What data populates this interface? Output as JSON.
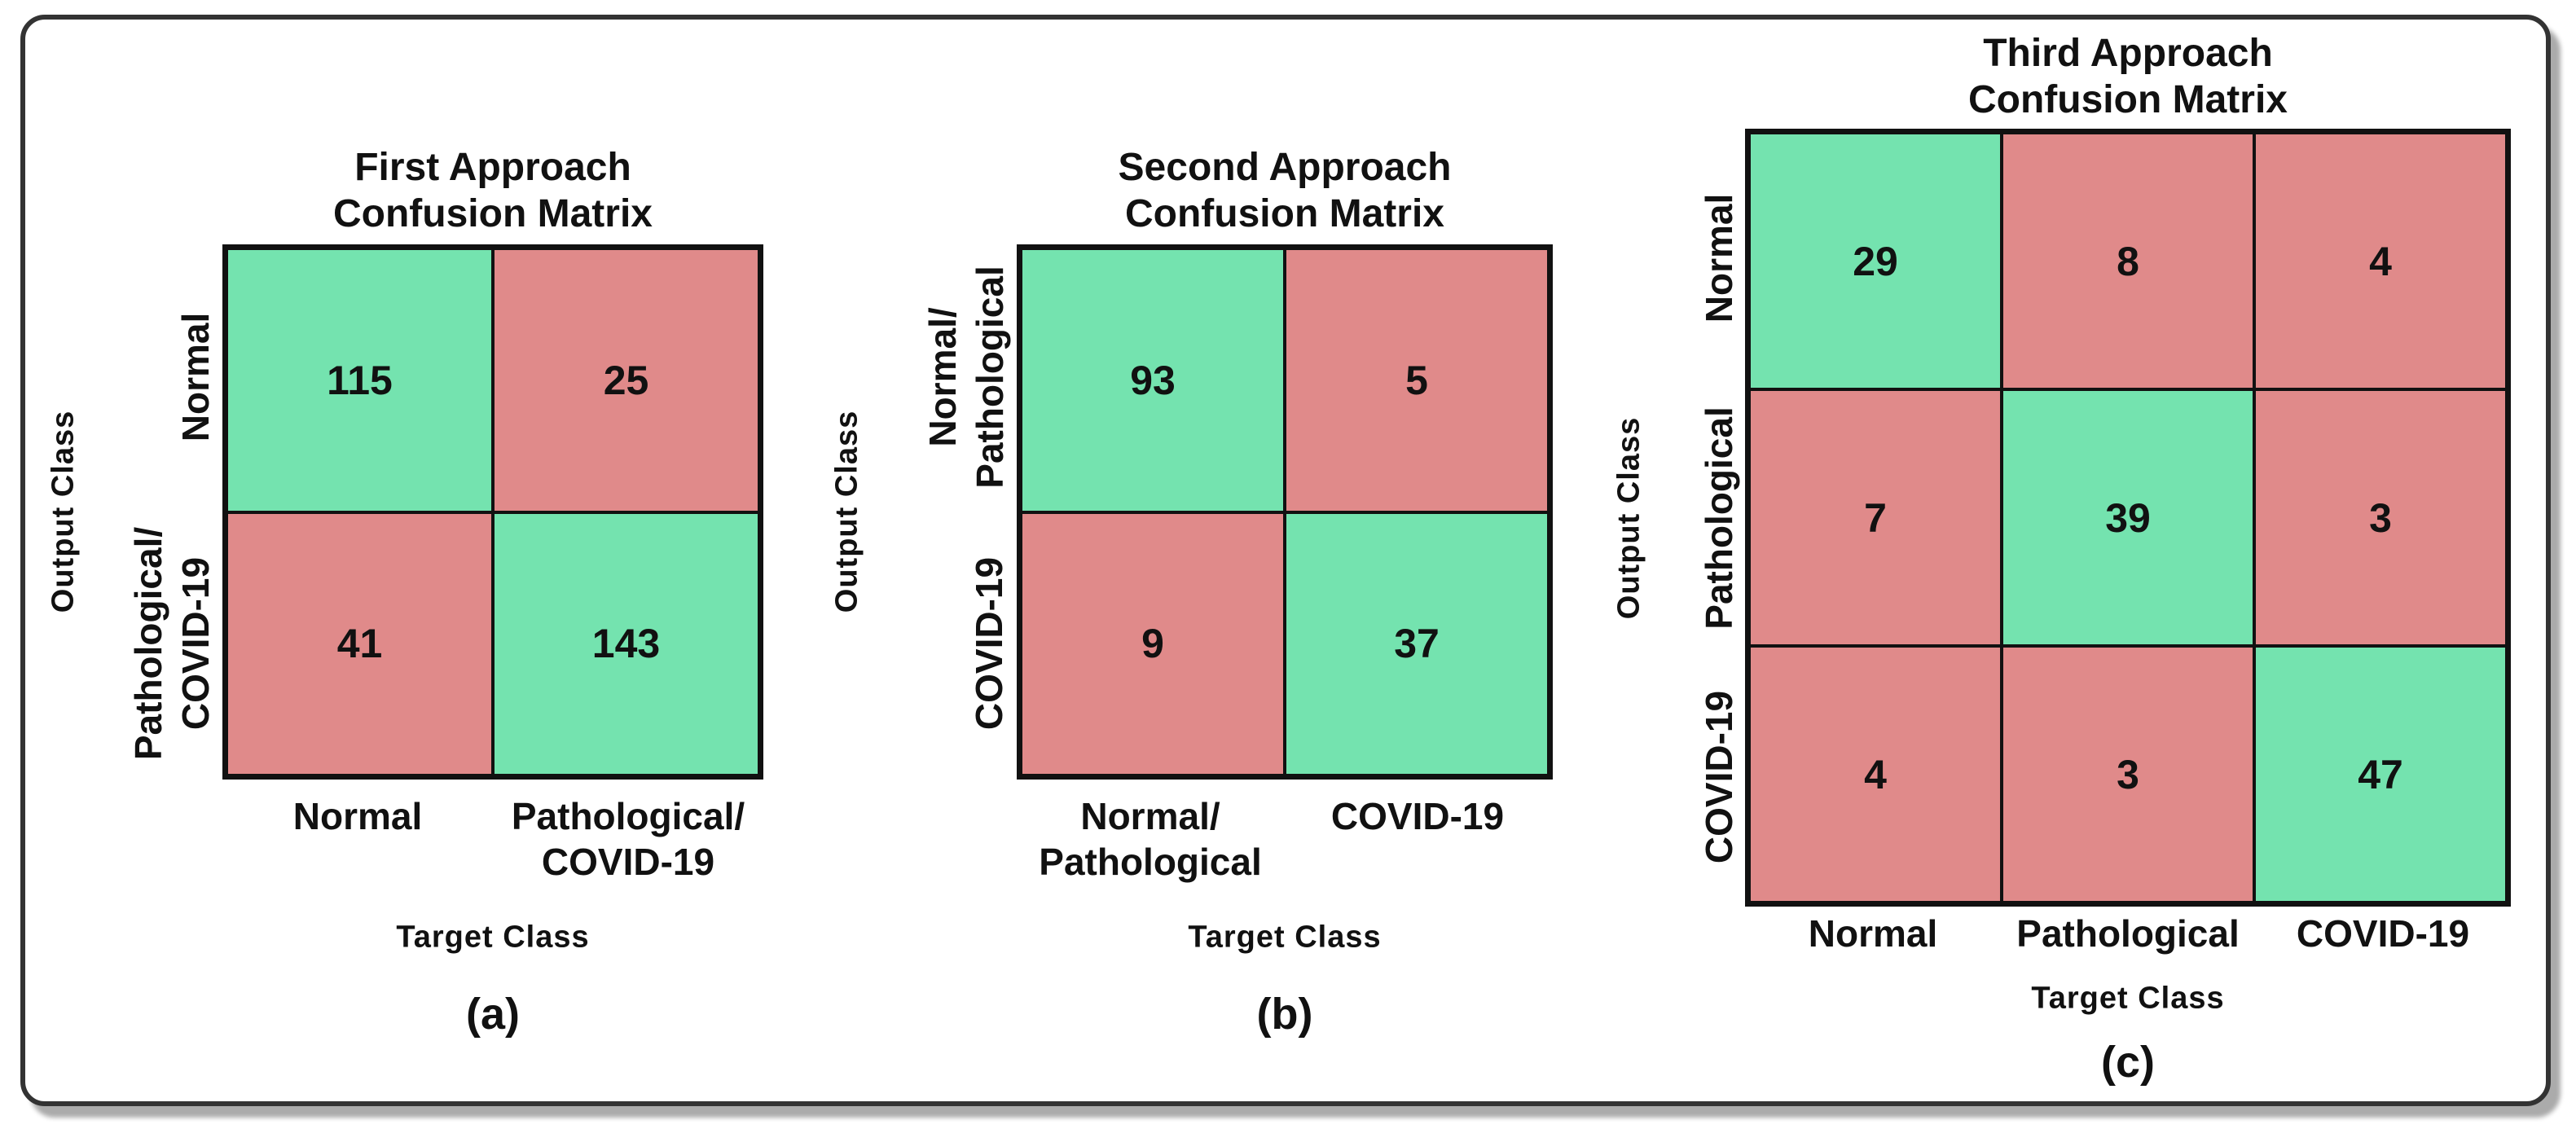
{
  "colors": {
    "correct_cell": "#74e3af",
    "incorrect_cell": "#e08a8a",
    "grid_line": "#111111",
    "frame_border": "#333333",
    "frame_shadow": "#ababab",
    "text": "#111111"
  },
  "panels": [
    {
      "caption": "(a)",
      "title": {
        "line1": "First Approach",
        "line2": "Confusion Matrix"
      },
      "x_axis_label": "Target Class",
      "y_axis_label": "Output Class",
      "row_labels": [
        {
          "lines": [
            "Normal",
            ""
          ]
        },
        {
          "lines": [
            "Pathological/",
            "COVID-19"
          ]
        }
      ],
      "col_labels": [
        {
          "lines": [
            "Normal",
            ""
          ]
        },
        {
          "lines": [
            "Pathological/",
            "COVID-19"
          ]
        }
      ],
      "values": [
        [
          115,
          25
        ],
        [
          41,
          143
        ]
      ]
    },
    {
      "caption": "(b)",
      "title": {
        "line1": "Second Approach",
        "line2": "Confusion Matrix"
      },
      "x_axis_label": "Target Class",
      "y_axis_label": "Output Class",
      "row_labels": [
        {
          "lines": [
            "Normal/",
            "Pathological"
          ]
        },
        {
          "lines": [
            "COVID-19",
            ""
          ]
        }
      ],
      "col_labels": [
        {
          "lines": [
            "Normal/",
            "Pathological"
          ]
        },
        {
          "lines": [
            "COVID-19",
            ""
          ]
        }
      ],
      "values": [
        [
          93,
          5
        ],
        [
          9,
          37
        ]
      ]
    },
    {
      "caption": "(c)",
      "title": {
        "line1": "Third Approach",
        "line2": "Confusion Matrix"
      },
      "x_axis_label": "Target Class",
      "y_axis_label": "Output Class",
      "row_labels": [
        {
          "lines": [
            "Normal",
            ""
          ]
        },
        {
          "lines": [
            "Pathological",
            ""
          ]
        },
        {
          "lines": [
            "COVID-19",
            ""
          ]
        }
      ],
      "col_labels": [
        {
          "lines": [
            "Normal",
            ""
          ]
        },
        {
          "lines": [
            "Pathological",
            ""
          ]
        },
        {
          "lines": [
            "COVID-19",
            ""
          ]
        }
      ],
      "values": [
        [
          29,
          8,
          4
        ],
        [
          7,
          39,
          3
        ],
        [
          4,
          3,
          47
        ]
      ]
    }
  ],
  "chart_data": [
    {
      "type": "heatmap",
      "title": "First Approach Confusion Matrix",
      "x_categories": [
        "Normal",
        "Pathological/COVID-19"
      ],
      "y_categories": [
        "Normal",
        "Pathological/COVID-19"
      ],
      "values": [
        [
          115,
          25
        ],
        [
          41,
          143
        ]
      ],
      "xlabel": "Target Class",
      "ylabel": "Output Class",
      "caption": "(a)",
      "diagonal_color": "#74e3af",
      "off_diagonal_color": "#e08a8a",
      "legend": "none",
      "grid": "on"
    },
    {
      "type": "heatmap",
      "title": "Second Approach Confusion Matrix",
      "x_categories": [
        "Normal/Pathological",
        "COVID-19"
      ],
      "y_categories": [
        "Normal/Pathological",
        "COVID-19"
      ],
      "values": [
        [
          93,
          5
        ],
        [
          9,
          37
        ]
      ],
      "xlabel": "Target Class",
      "ylabel": "Output Class",
      "caption": "(b)",
      "diagonal_color": "#74e3af",
      "off_diagonal_color": "#e08a8a",
      "legend": "none",
      "grid": "on"
    },
    {
      "type": "heatmap",
      "title": "Third Approach Confusion Matrix",
      "x_categories": [
        "Normal",
        "Pathological",
        "COVID-19"
      ],
      "y_categories": [
        "Normal",
        "Pathological",
        "COVID-19"
      ],
      "values": [
        [
          29,
          8,
          4
        ],
        [
          7,
          39,
          3
        ],
        [
          4,
          3,
          47
        ]
      ],
      "xlabel": "Target Class",
      "ylabel": "Output Class",
      "caption": "(c)",
      "diagonal_color": "#74e3af",
      "off_diagonal_color": "#e08a8a",
      "legend": "none",
      "grid": "on"
    }
  ]
}
